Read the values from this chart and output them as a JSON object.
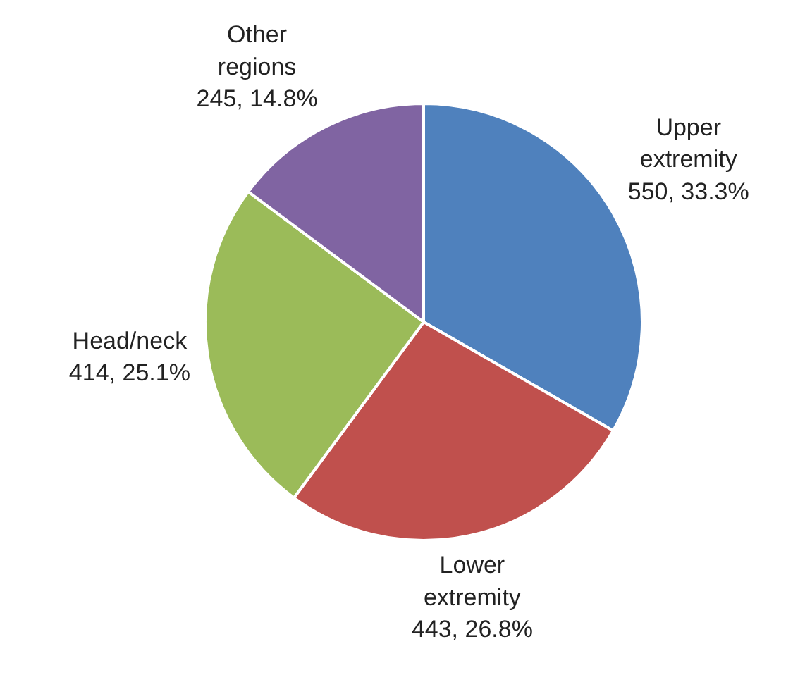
{
  "chart_data": {
    "type": "pie",
    "categories": [
      "Upper extremity",
      "Lower extremity",
      "Head/neck",
      "Other regions"
    ],
    "values": [
      550,
      443,
      414,
      245
    ],
    "value_labels": [
      "550, 33.3%",
      "443, 26.8%",
      "414, 25.1%",
      "245, 14.8%"
    ],
    "colors": [
      "#4f81bd",
      "#c0504d",
      "#9bbb59",
      "#8064a2"
    ]
  }
}
